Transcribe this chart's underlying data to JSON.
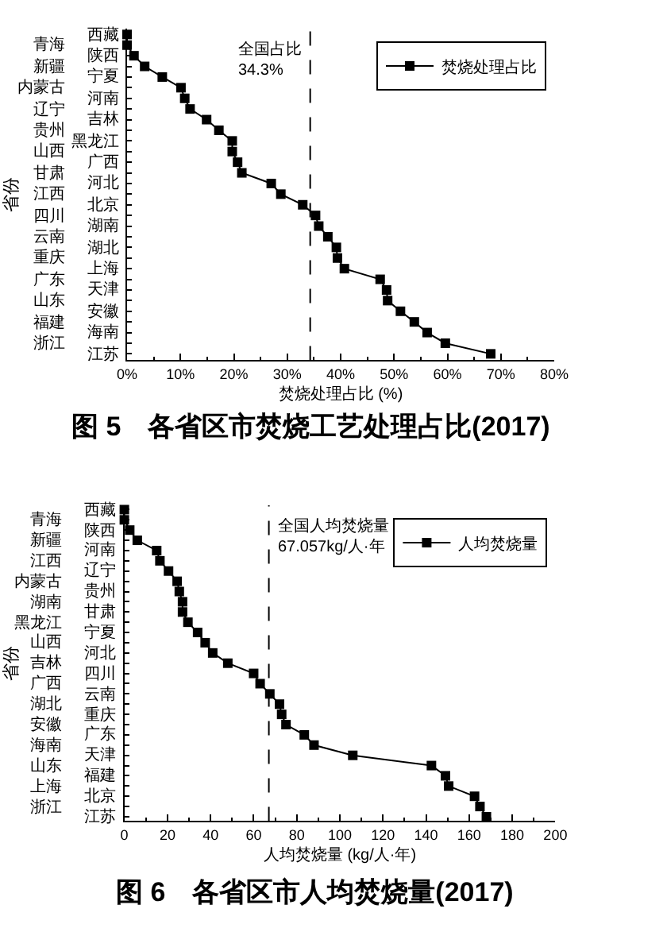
{
  "chart_data": [
    {
      "type": "line",
      "orientation": "horizontal",
      "title": "图 5　各省区市焚烧工艺处理占比(2017)",
      "xlabel": "焚烧处理占比 (%)",
      "ylabel": "省份",
      "categories": [
        "西藏",
        "青海",
        "陕西",
        "新疆",
        "宁夏",
        "内蒙古",
        "河南",
        "辽宁",
        "吉林",
        "贵州",
        "黑龙江",
        "山西",
        "广西",
        "甘肃",
        "河北",
        "江西",
        "北京",
        "四川",
        "湖南",
        "云南",
        "湖北",
        "重庆",
        "上海",
        "广东",
        "天津",
        "山东",
        "安徽",
        "福建",
        "海南",
        "浙江",
        "江苏"
      ],
      "series": [
        {
          "name": "焚烧处理占比",
          "color": "#000000",
          "values": [
            0,
            0,
            1.3,
            3.3,
            6.6,
            10.1,
            10.8,
            11.8,
            14.9,
            17.2,
            19.7,
            19.7,
            20.7,
            21.5,
            27.0,
            28.8,
            32.9,
            35.3,
            35.9,
            37.6,
            39.2,
            39.4,
            40.7,
            47.4,
            48.6,
            48.8,
            51.2,
            53.8,
            56.2,
            59.6,
            68.1
          ]
        }
      ],
      "xlim": [
        0,
        80
      ],
      "xticks": [
        {
          "value": 0,
          "label": "0%"
        },
        {
          "value": 5,
          "label": null
        },
        {
          "value": 10,
          "label": "10%"
        },
        {
          "value": 15,
          "label": null
        },
        {
          "value": 20,
          "label": "20%"
        },
        {
          "value": 25,
          "label": null
        },
        {
          "value": 30,
          "label": "30%"
        },
        {
          "value": 35,
          "label": null
        },
        {
          "value": 40,
          "label": "40%"
        },
        {
          "value": 45,
          "label": null
        },
        {
          "value": 50,
          "label": "50%"
        },
        {
          "value": 55,
          "label": null
        },
        {
          "value": 60,
          "label": "60%"
        },
        {
          "value": 65,
          "label": null
        },
        {
          "value": 70,
          "label": "70%"
        },
        {
          "value": 75,
          "label": null
        },
        {
          "value": 80,
          "label": "80%"
        }
      ],
      "ref_lines": [
        {
          "axis": "x",
          "value": 34.3,
          "label": "全国占比\n34.3%",
          "color": "#000000",
          "line_style": "dashed"
        }
      ],
      "legend": "top right",
      "marker": "square",
      "line_style": "solid"
    },
    {
      "type": "line",
      "orientation": "horizontal",
      "title": "图 6　各省区市人均焚烧量(2017)",
      "xlabel": "人均焚烧量 (kg/人·年)",
      "ylabel": "省份",
      "categories": [
        "西藏",
        "青海",
        "陕西",
        "新疆",
        "河南",
        "江西",
        "辽宁",
        "内蒙古",
        "贵州",
        "湖南",
        "甘肃",
        "黑龙江",
        "宁夏",
        "山西",
        "河北",
        "吉林",
        "四川",
        "广西",
        "云南",
        "湖北",
        "重庆",
        "安徽",
        "广东",
        "海南",
        "天津",
        "山东",
        "福建",
        "上海",
        "北京",
        "浙江",
        "江苏"
      ],
      "series": [
        {
          "name": "人均焚烧量",
          "color": "#000000",
          "values": [
            0,
            0,
            2.5,
            6,
            15,
            16.5,
            20.5,
            24.5,
            25.5,
            27,
            27,
            29.5,
            34,
            37.5,
            41,
            48,
            60,
            63,
            67.5,
            72,
            73,
            75,
            83.5,
            88,
            106,
            142.5,
            149,
            150.5,
            162.5,
            165,
            168
          ]
        }
      ],
      "xlim": [
        0,
        200
      ],
      "xticks": [
        0,
        {
          "value": 10,
          "label": null
        },
        20,
        {
          "value": 30,
          "label": null
        },
        40,
        {
          "value": 50,
          "label": null
        },
        60,
        {
          "value": 70,
          "label": null
        },
        80,
        {
          "value": 90,
          "label": null
        },
        100,
        {
          "value": 110,
          "label": null
        },
        120,
        {
          "value": 130,
          "label": null
        },
        140,
        {
          "value": 150,
          "label": null
        },
        160,
        {
          "value": 170,
          "label": null
        },
        180,
        {
          "value": 190,
          "label": null
        },
        200
      ],
      "ref_lines": [
        {
          "axis": "x",
          "value": 67.057,
          "label": "全国人均焚烧量\n67.057kg/人·年",
          "color": "#000000",
          "line_style": "dashed"
        }
      ],
      "legend": "top right",
      "marker": "square",
      "line_style": "solid"
    }
  ]
}
